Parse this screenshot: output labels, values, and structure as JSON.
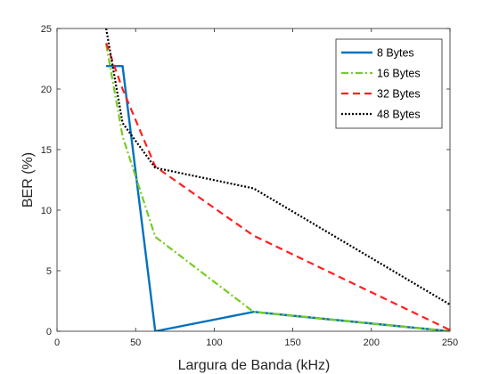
{
  "chart_data": {
    "type": "line",
    "xlabel": "Largura de Banda (kHz)",
    "ylabel": "BER (%)",
    "xlim": [
      0,
      250
    ],
    "ylim": [
      0,
      25
    ],
    "xticks": [
      0,
      50,
      100,
      150,
      200,
      250
    ],
    "yticks": [
      0,
      5,
      10,
      15,
      20,
      25
    ],
    "grid": false,
    "legend_position": "top-right",
    "series": [
      {
        "name": "8 Bytes",
        "color": "#0072BD",
        "line_style": "solid",
        "x": [
          31.25,
          41.7,
          62.5,
          125,
          250
        ],
        "y": [
          21.9,
          21.9,
          0.0,
          1.6,
          0.0
        ]
      },
      {
        "name": "16 Bytes",
        "color": "#77CC22",
        "line_style": "dash-dot",
        "x": [
          31.25,
          41.7,
          62.5,
          125,
          250
        ],
        "y": [
          23.7,
          16.1,
          7.8,
          1.6,
          0.0
        ]
      },
      {
        "name": "32 Bytes",
        "color": "#FF2020",
        "line_style": "dashed",
        "x": [
          31.25,
          41.7,
          62.5,
          125,
          250
        ],
        "y": [
          23.8,
          20.0,
          13.6,
          7.9,
          0.1
        ]
      },
      {
        "name": "48 Bytes",
        "color": "#000000",
        "line_style": "dotted",
        "x": [
          31.25,
          41.7,
          62.5,
          125,
          250
        ],
        "y": [
          25.0,
          17.2,
          13.5,
          11.8,
          2.2
        ]
      }
    ]
  }
}
